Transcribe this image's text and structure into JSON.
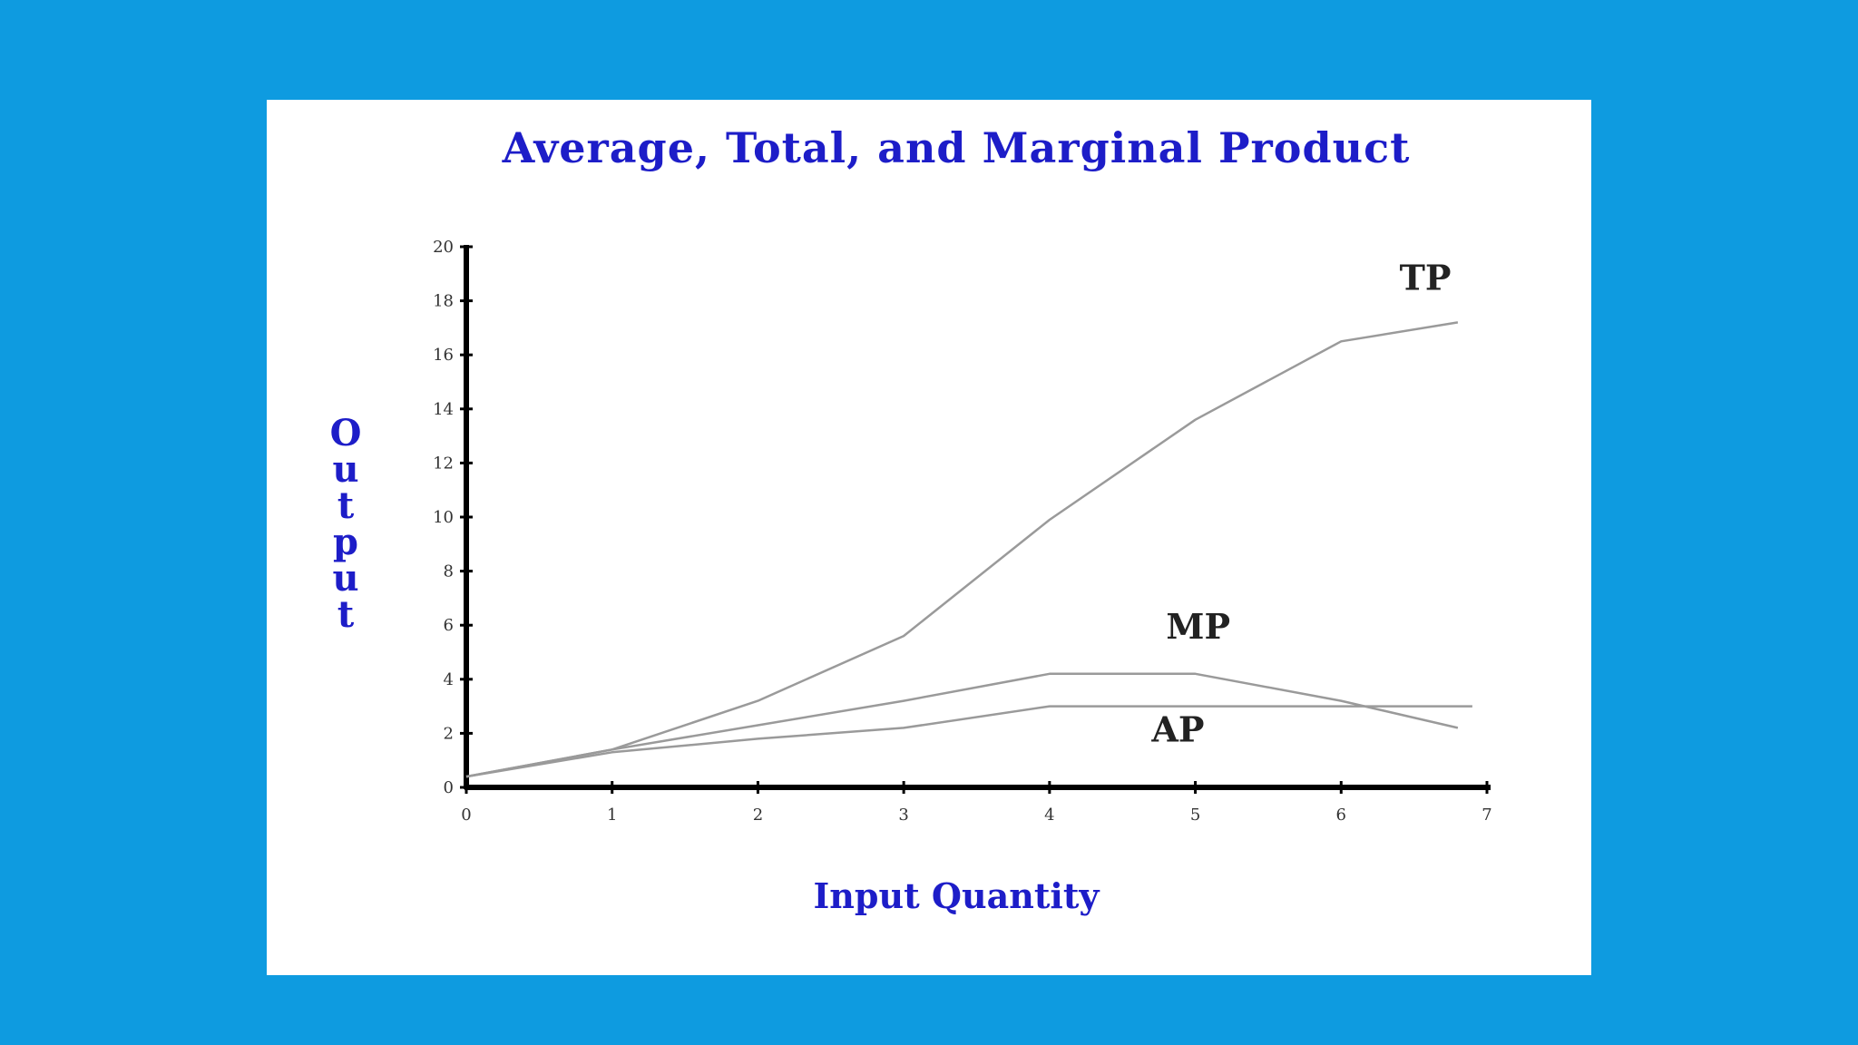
{
  "chart_data": {
    "type": "line",
    "title": "Average, Total, and Marginal Product",
    "xlabel": "Input Quantity",
    "ylabel": "Output",
    "xlim": [
      0,
      7
    ],
    "ylim": [
      0,
      20
    ],
    "x_ticks": [
      "0",
      "1",
      "2",
      "3",
      "4",
      "5",
      "6",
      "7"
    ],
    "y_ticks": [
      "0",
      "2",
      "4",
      "6",
      "8",
      "10",
      "12",
      "14",
      "16",
      "18",
      "20"
    ],
    "grid": false,
    "legend": "none",
    "series": [
      {
        "name": "TP",
        "x": [
          0,
          1,
          2,
          3,
          4,
          5,
          6,
          6.8
        ],
        "y": [
          0.4,
          1.4,
          3.2,
          5.6,
          9.9,
          13.6,
          16.5,
          17.2
        ]
      },
      {
        "name": "MP",
        "x": [
          0,
          1,
          2,
          3,
          4,
          5,
          6,
          6.8
        ],
        "y": [
          0.4,
          1.4,
          2.3,
          3.2,
          4.2,
          4.2,
          3.2,
          2.2
        ]
      },
      {
        "name": "AP",
        "x": [
          0,
          1,
          2,
          3,
          4,
          5,
          6,
          6.9
        ],
        "y": [
          0.4,
          1.3,
          1.8,
          2.2,
          3.0,
          3.0,
          3.0,
          3.0
        ]
      }
    ],
    "annotations": [
      {
        "text": "TP",
        "x": 6.4,
        "y": 18.4
      },
      {
        "text": "MP",
        "x": 4.8,
        "y": 5.5
      },
      {
        "text": "AP",
        "x": 4.7,
        "y": 1.7
      }
    ],
    "line_color": "#9a9a9a",
    "axis_color": "#000000",
    "text_color": "#1d1dc8"
  }
}
